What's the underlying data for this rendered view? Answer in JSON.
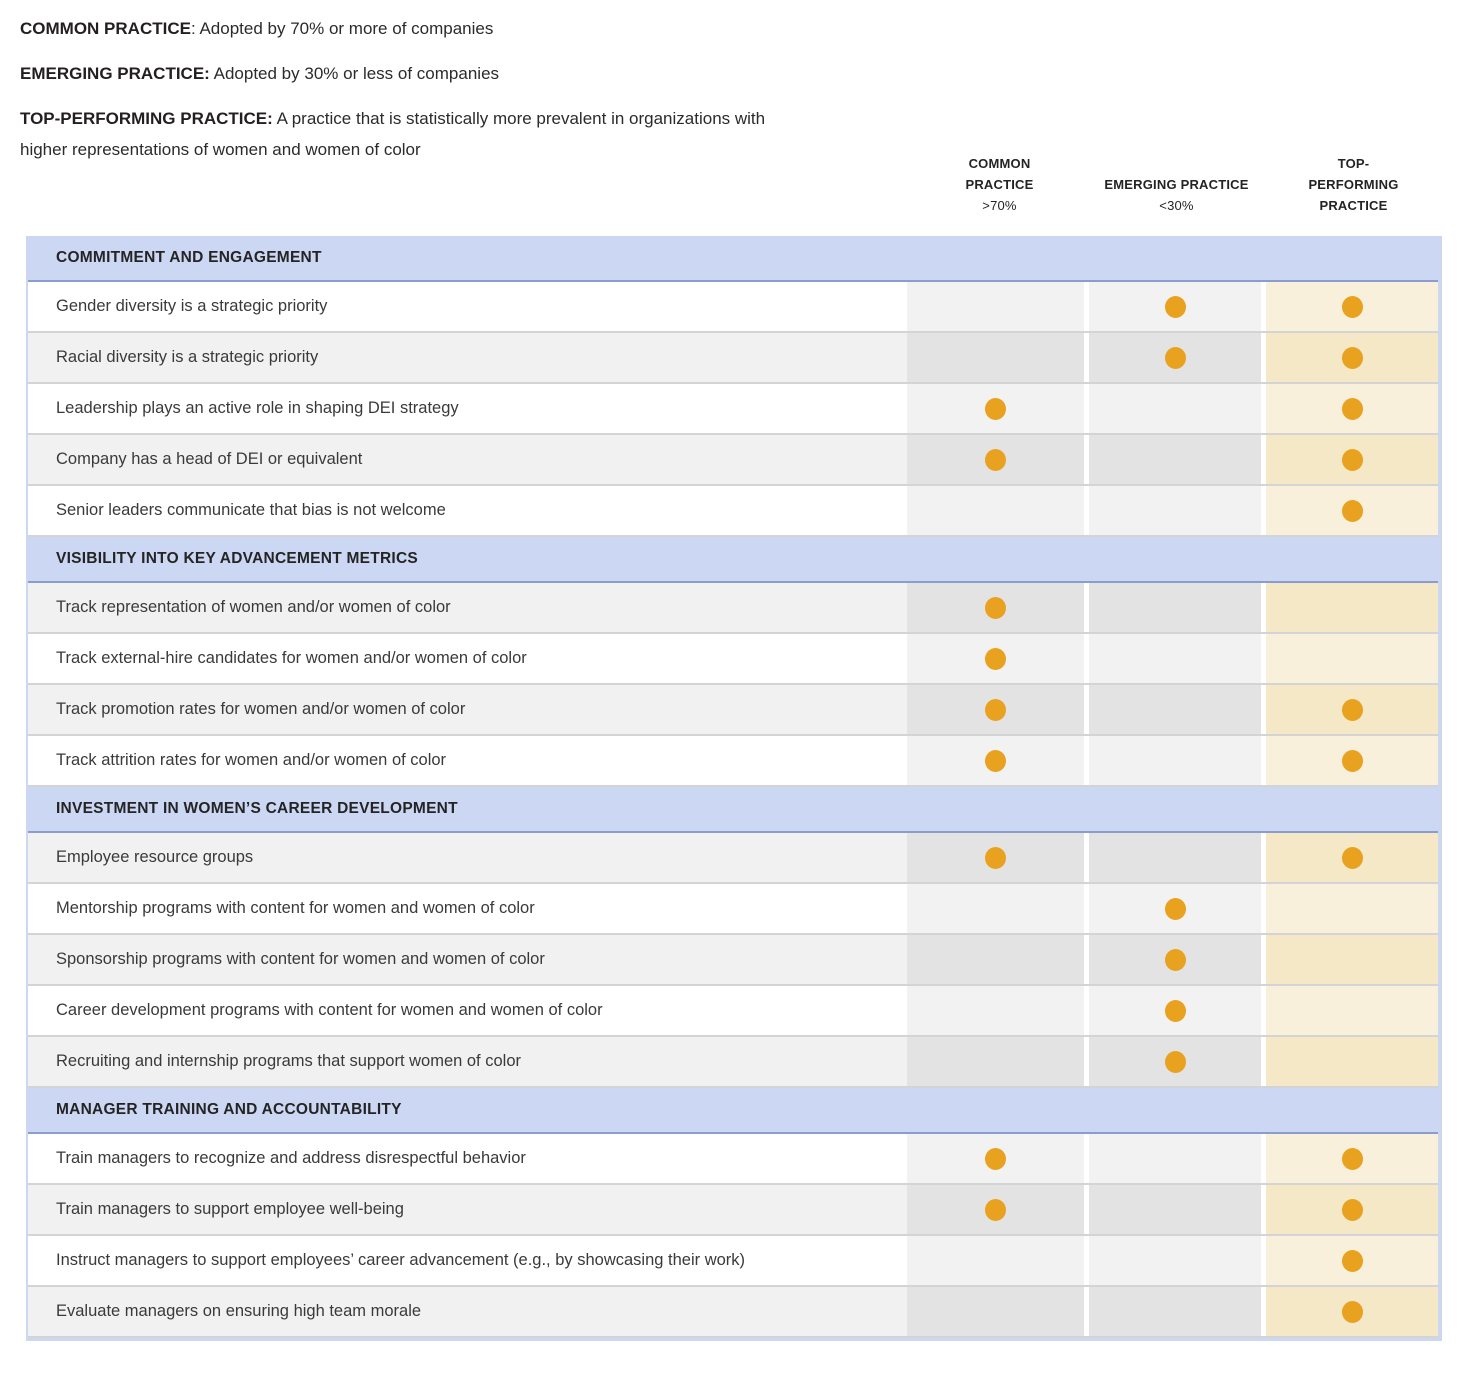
{
  "legend": [
    {
      "term": "COMMON PRACTICE",
      "definition": ": Adopted by 70% or more of companies"
    },
    {
      "term": "EMERGING PRACTICE:",
      "definition": " Adopted by 30% or less of companies"
    },
    {
      "term": "TOP-PERFORMING PRACTICE:",
      "definition": " A practice that is statistically more prevalent in organizations with higher representations of women and women of color"
    }
  ],
  "columns": {
    "common": {
      "lines": [
        "COMMON",
        "PRACTICE"
      ],
      "sub": ">70%"
    },
    "emerging": {
      "lines": [
        "EMERGING PRACTICE"
      ],
      "sub": "<30%"
    },
    "top": {
      "lines": [
        "TOP-",
        "PERFORMING",
        "PRACTICE"
      ],
      "sub": ""
    }
  },
  "colors": {
    "band": "#ccd7f3",
    "band_border": "#8b9ccf",
    "row_alt": "#f1f1f1",
    "col_light": "#f2f2f2",
    "col_dark": "#e3e3e3",
    "top_light": "#f8f0db",
    "top_dark": "#f4e8c6",
    "dot": "#e8a220",
    "table_border": "#ccd8f2",
    "separator": "#d4d4d4"
  },
  "chart_data": {
    "type": "table",
    "title": "DEI practices by adoption category",
    "columns": [
      "COMMON PRACTICE >70%",
      "EMERGING PRACTICE <30%",
      "TOP-PERFORMING PRACTICE"
    ],
    "sections": [
      {
        "title": "COMMITMENT AND ENGAGEMENT",
        "rows": [
          {
            "label": "Gender diversity is a strategic priority",
            "common": false,
            "emerging": true,
            "top": true
          },
          {
            "label": "Racial diversity is a strategic priority",
            "common": false,
            "emerging": true,
            "top": true
          },
          {
            "label": "Leadership plays an active role in shaping DEI strategy",
            "common": true,
            "emerging": false,
            "top": true
          },
          {
            "label": "Company has a head of DEI or equivalent",
            "common": true,
            "emerging": false,
            "top": true
          },
          {
            "label": "Senior leaders communicate that bias is not welcome",
            "common": false,
            "emerging": false,
            "top": true
          }
        ]
      },
      {
        "title": "VISIBILITY INTO KEY ADVANCEMENT METRICS",
        "rows": [
          {
            "label": "Track representation of women and/or women of color",
            "common": true,
            "emerging": false,
            "top": false
          },
          {
            "label": "Track external-hire candidates for women and/or women of color",
            "common": true,
            "emerging": false,
            "top": false
          },
          {
            "label": "Track promotion rates for women and/or women of color",
            "common": true,
            "emerging": false,
            "top": true
          },
          {
            "label": "Track attrition rates for women and/or women of color",
            "common": true,
            "emerging": false,
            "top": true
          }
        ]
      },
      {
        "title": "INVESTMENT IN WOMEN’S CAREER DEVELOPMENT",
        "rows": [
          {
            "label": "Employee resource groups",
            "common": true,
            "emerging": false,
            "top": true
          },
          {
            "label": "Mentorship programs with content for women and women of color",
            "common": false,
            "emerging": true,
            "top": false
          },
          {
            "label": "Sponsorship programs with content for women and women of color",
            "common": false,
            "emerging": true,
            "top": false
          },
          {
            "label": "Career development programs with content for women and women of color",
            "common": false,
            "emerging": true,
            "top": false
          },
          {
            "label": "Recruiting and internship programs that support women of color",
            "common": false,
            "emerging": true,
            "top": false
          }
        ]
      },
      {
        "title": "MANAGER TRAINING AND ACCOUNTABILITY",
        "rows": [
          {
            "label": "Train managers to recognize and address disrespectful behavior",
            "common": true,
            "emerging": false,
            "top": true
          },
          {
            "label": "Train managers to support employee well-being",
            "common": true,
            "emerging": false,
            "top": true
          },
          {
            "label": "Instruct managers to support employees’ career advancement (e.g., by showcasing their work)",
            "common": false,
            "emerging": false,
            "top": true
          },
          {
            "label": "Evaluate managers on ensuring high team morale",
            "common": false,
            "emerging": false,
            "top": true
          }
        ]
      }
    ]
  }
}
